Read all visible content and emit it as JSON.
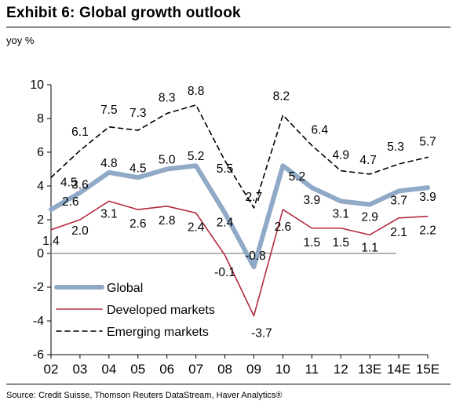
{
  "header": {
    "title": "Exhibit 6: Global growth outlook",
    "unit": "yoy %"
  },
  "footer": {
    "source": "Source: Credit Suisse, Thomson Reuters DataStream, Haver Analytics®"
  },
  "chart_data": {
    "type": "line",
    "categories": [
      "02",
      "03",
      "04",
      "05",
      "06",
      "07",
      "08",
      "09",
      "10",
      "11",
      "12",
      "13E",
      "14E",
      "15E"
    ],
    "ylim": [
      -6,
      10
    ],
    "yticks": [
      -6,
      -4,
      -2,
      0,
      2,
      4,
      6,
      8,
      10
    ],
    "grid": false,
    "legend_position": "bottom-left",
    "series": [
      {
        "name": "Global",
        "color": "#8fa9c6",
        "style": "thick",
        "values": [
          2.6,
          3.6,
          4.8,
          4.5,
          5.0,
          5.2,
          2.4,
          -0.8,
          5.2,
          3.9,
          3.1,
          2.9,
          3.7,
          3.9
        ],
        "labels": [
          "2.6",
          "3.6",
          "4.8",
          "4.5",
          "5.0",
          "5.2",
          "2.4",
          "-0.8",
          "5.2",
          "3.9",
          "3.1",
          "2.9",
          "3.7",
          "3.9"
        ]
      },
      {
        "name": "Developed markets",
        "color": "#b22a3d",
        "style": "solid",
        "values": [
          1.4,
          2.0,
          3.1,
          2.6,
          2.8,
          2.4,
          -0.1,
          -3.7,
          2.6,
          1.5,
          1.5,
          1.1,
          2.1,
          2.2
        ],
        "labels": [
          "1.4",
          "2.0",
          "3.1",
          "2.6",
          "2.8",
          "2.4",
          "-0.1",
          "-3.7",
          "2.6",
          "1.5",
          "1.5",
          "1.1",
          "2.1",
          "2.2"
        ]
      },
      {
        "name": "Emerging markets",
        "color": "#000000",
        "style": "dashed",
        "values": [
          4.5,
          6.1,
          7.5,
          7.3,
          8.3,
          8.8,
          5.5,
          2.7,
          8.2,
          6.4,
          4.9,
          4.7,
          5.3,
          5.7
        ],
        "labels": [
          "4.5",
          "6.1",
          "7.5",
          "7.3",
          "8.3",
          "8.8",
          "5.5",
          "2.7",
          "8.2",
          "6.4",
          "4.9",
          "4.7",
          "5.3",
          "5.7"
        ]
      }
    ]
  }
}
